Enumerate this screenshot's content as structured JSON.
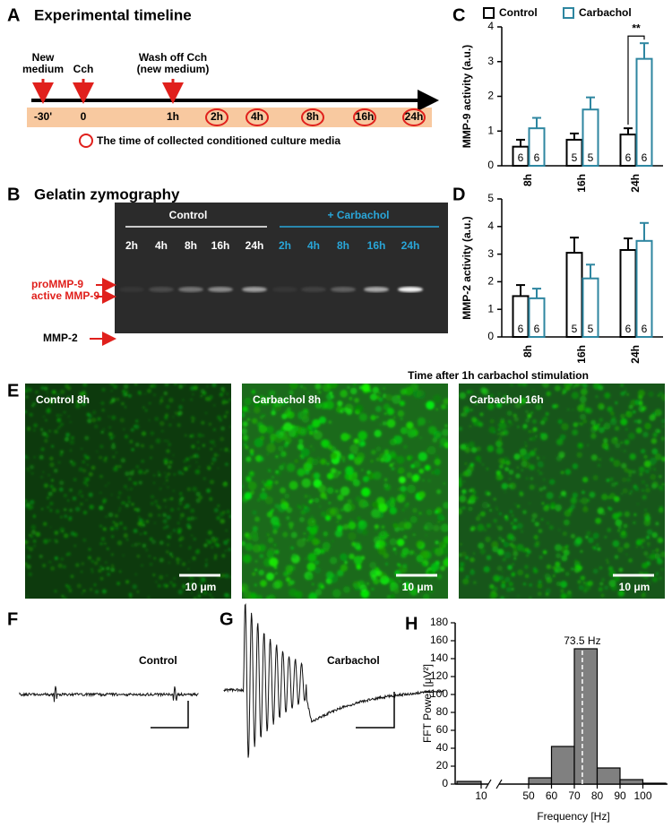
{
  "panel_a": {
    "label": "A",
    "title": "Experimental timeline",
    "events": [
      {
        "lines": [
          "New",
          "medium"
        ]
      },
      {
        "lines": [
          "Cch"
        ]
      },
      {
        "lines": [
          "Wash off Cch",
          "(new medium)"
        ]
      }
    ],
    "timepoints": [
      "-30'",
      "0",
      "1h",
      "2h",
      "4h",
      "8h",
      "16h",
      "24h"
    ],
    "collected": [
      false,
      false,
      false,
      true,
      true,
      true,
      true,
      true
    ],
    "collected_legend": "The time of collected conditioned culture media"
  },
  "panel_b": {
    "label": "B",
    "title": "Gelatin zymography",
    "groups": [
      {
        "name": "Control",
        "color": "#ffffff",
        "lanes": [
          "2h",
          "4h",
          "8h",
          "16h",
          "24h"
        ]
      },
      {
        "name": "+ Carbachol",
        "color": "#29a6d9",
        "lanes": [
          "2h",
          "4h",
          "8h",
          "16h",
          "24h"
        ]
      }
    ],
    "bands": [
      "proMMP-9",
      "active MMP-9",
      "MMP-2"
    ]
  },
  "panel_e": {
    "label": "E",
    "images": [
      {
        "caption": "Control 8h",
        "scale_bar": "10 μm"
      },
      {
        "caption": "Carbachol 8h",
        "scale_bar": "10 μm"
      },
      {
        "caption": "Carbachol 16h",
        "scale_bar": "10 μm"
      }
    ]
  },
  "panel_f": {
    "label": "F",
    "condition": "Control"
  },
  "panel_g": {
    "label": "G",
    "condition": "Carbachol"
  },
  "chart_data": [
    {
      "type": "bar",
      "label": "C",
      "ylabel": "MMP-9 activity (a.u.)",
      "categories": [
        "8h",
        "16h",
        "24h"
      ],
      "series": [
        {
          "name": "Control",
          "color": "#000000",
          "values": [
            0.55,
            0.75,
            0.9
          ],
          "errors": [
            0.2,
            0.18,
            0.18
          ],
          "n": [
            6,
            5,
            6
          ]
        },
        {
          "name": "Carbachol",
          "color": "#2e86a0",
          "values": [
            1.08,
            1.62,
            3.08
          ],
          "errors": [
            0.3,
            0.35,
            0.45
          ],
          "n": [
            6,
            5,
            6
          ]
        }
      ],
      "ylim": [
        0,
        4
      ],
      "yticks": [
        0,
        1,
        2,
        3,
        4
      ],
      "annotation": "**",
      "legend": "top"
    },
    {
      "type": "bar",
      "label": "D",
      "ylabel": "MMP-2 activity (a.u.)",
      "xlabel": "Time after 1h carbachol stimulation",
      "categories": [
        "8h",
        "16h",
        "24h"
      ],
      "series": [
        {
          "name": "Control",
          "color": "#000000",
          "values": [
            1.48,
            3.05,
            3.15
          ],
          "errors": [
            0.4,
            0.55,
            0.42
          ],
          "n": [
            6,
            5,
            6
          ]
        },
        {
          "name": "Carbachol",
          "color": "#2e86a0",
          "values": [
            1.4,
            2.12,
            3.48
          ],
          "errors": [
            0.35,
            0.5,
            0.65
          ],
          "n": [
            6,
            5,
            6
          ]
        }
      ],
      "ylim": [
        0,
        5
      ],
      "yticks": [
        0,
        1,
        2,
        3,
        4,
        5
      ]
    },
    {
      "type": "histogram",
      "label": "H",
      "xlabel": "Frequency [Hz]",
      "ylabel": "FFT Power [μV²]",
      "bins": [
        0,
        10,
        50,
        60,
        70,
        80,
        90,
        100,
        110
      ],
      "values": [
        3,
        null,
        7,
        42,
        151,
        18,
        5,
        1
      ],
      "color": "#808080",
      "xlim": [
        0,
        110
      ],
      "xbreak": [
        10,
        50
      ],
      "xticks": [
        10,
        50,
        60,
        70,
        80,
        90,
        100
      ],
      "ylim": [
        0,
        180
      ],
      "yticks": [
        0,
        20,
        40,
        60,
        80,
        100,
        120,
        140,
        160,
        180
      ],
      "peak": {
        "value": 73.5,
        "label": "73.5 Hz"
      }
    }
  ]
}
